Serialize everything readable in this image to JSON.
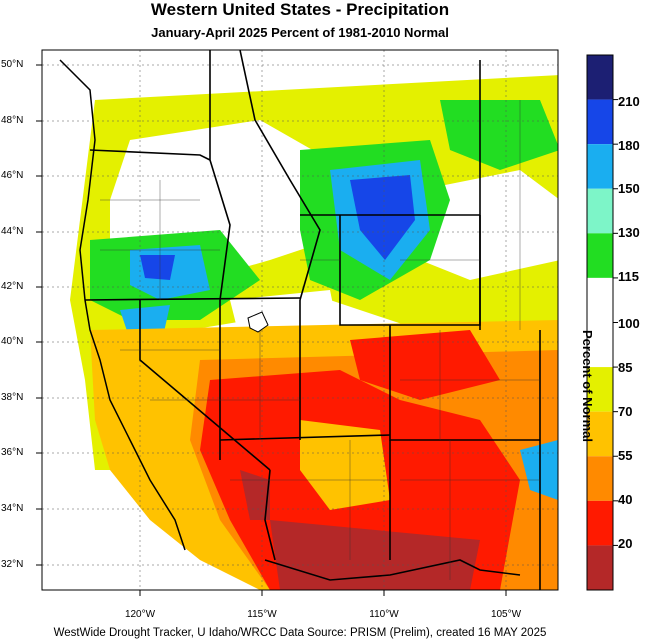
{
  "title": "Western United States - Precipitation",
  "subtitle": "January-April 2025  Percent of 1981-2010 Normal",
  "lat_labels": [
    "50°N",
    "48°N",
    "46°N",
    "44°N",
    "42°N",
    "40°N",
    "38°N",
    "36°N",
    "34°N",
    "32°N"
  ],
  "lon_labels": [
    "120°W",
    "115°W",
    "110°W",
    "105°W"
  ],
  "legend": {
    "title": "Percent of Normal",
    "labels": [
      "210",
      "180",
      "150",
      "130",
      "115",
      "100",
      "85",
      "70",
      "55",
      "40",
      "20"
    ],
    "colors": [
      "#1c1f73",
      "#1646e8",
      "#1aaef0",
      "#7df5c8",
      "#22dd22",
      "#ffffff",
      "#ffffff",
      "#e4f000",
      "#ffc200",
      "#ff8a00",
      "#ff1a00",
      "#b42828"
    ]
  },
  "footer": "WestWide Drought Tracker, U Idaho/WRCC Data Source: PRISM (Prelim), created 16 MAY 2025",
  "colors": {
    "very_dry": "#b42828",
    "dry": "#ff1a00",
    "dry_moderate": "#ff8a00",
    "below": "#ffc200",
    "slightly_below": "#e4f000",
    "normal": "#ffffff",
    "above": "#22dd22",
    "much_above": "#1aaef0",
    "wettest": "#1646e8"
  }
}
